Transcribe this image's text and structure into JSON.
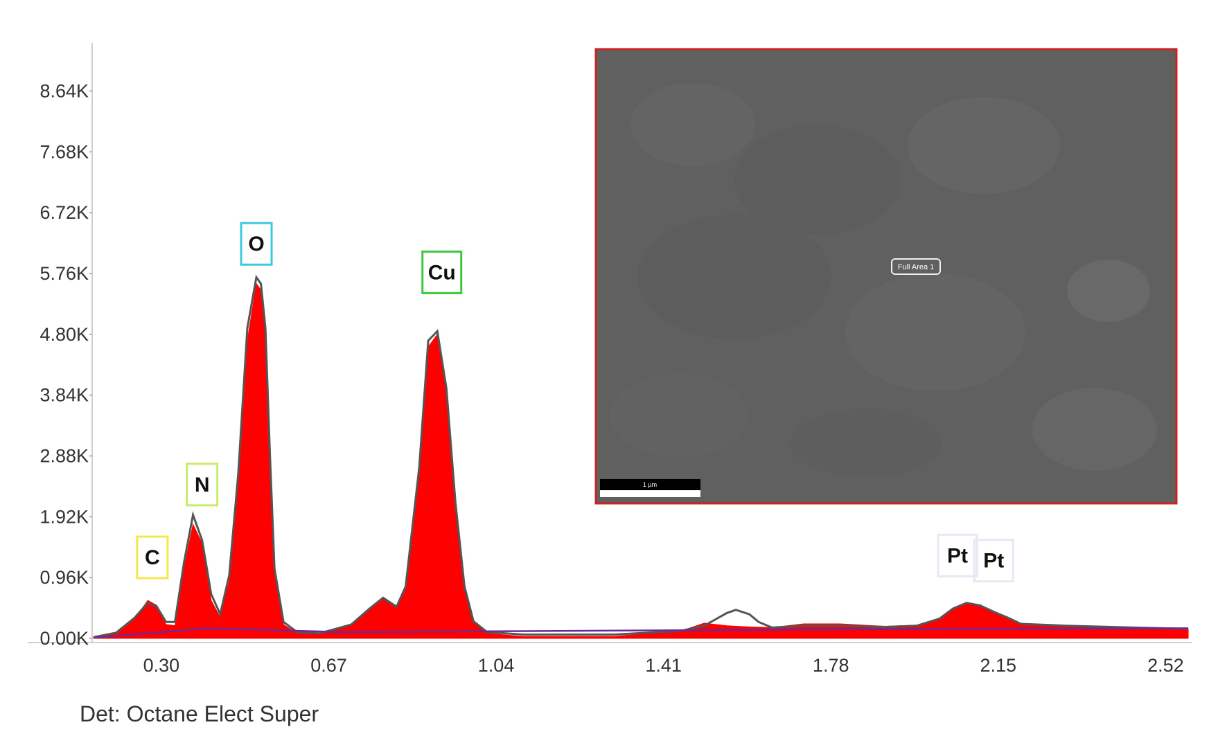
{
  "chart_data": {
    "type": "area",
    "x_ticks": [
      "0.30",
      "0.67",
      "1.04",
      "1.41",
      "1.78",
      "2.15",
      "2.52"
    ],
    "y_ticks": [
      "0.00K",
      "0.96K",
      "1.92K",
      "2.88K",
      "3.84K",
      "4.80K",
      "5.76K",
      "6.72K",
      "7.68K",
      "8.64K"
    ],
    "xlim": [
      0.15,
      2.57
    ],
    "ylim": [
      0,
      9400
    ],
    "grid": false,
    "series": [
      {
        "kind": "spectrum",
        "color": "#ff0000",
        "x": [
          0.15,
          0.2,
          0.24,
          0.27,
          0.29,
          0.31,
          0.33,
          0.35,
          0.37,
          0.39,
          0.41,
          0.43,
          0.45,
          0.47,
          0.49,
          0.51,
          0.52,
          0.53,
          0.54,
          0.55,
          0.57,
          0.6,
          0.65,
          0.72,
          0.76,
          0.79,
          0.82,
          0.84,
          0.87,
          0.89,
          0.91,
          0.93,
          0.95,
          0.97,
          0.99,
          1.02,
          1.1,
          1.3,
          1.45,
          1.5,
          1.55,
          1.6,
          1.65,
          1.72,
          1.8,
          1.9,
          1.97,
          2.02,
          2.05,
          2.08,
          2.11,
          2.14,
          2.17,
          2.2,
          2.3,
          2.45,
          2.57
        ],
        "y": [
          20,
          80,
          300,
          600,
          520,
          220,
          200,
          1100,
          1800,
          1500,
          600,
          330,
          900,
          2400,
          4700,
          5600,
          5500,
          4800,
          2800,
          1000,
          220,
          80,
          60,
          200,
          450,
          620,
          480,
          800,
          2600,
          4600,
          4800,
          3900,
          2100,
          800,
          250,
          80,
          30,
          30,
          120,
          240,
          200,
          180,
          170,
          230,
          230,
          190,
          210,
          300,
          460,
          560,
          520,
          420,
          330,
          230,
          200,
          170,
          150
        ]
      },
      {
        "kind": "fit",
        "color": "#555555",
        "x": [
          0.15,
          0.2,
          0.24,
          0.27,
          0.29,
          0.31,
          0.33,
          0.35,
          0.37,
          0.39,
          0.41,
          0.43,
          0.45,
          0.47,
          0.49,
          0.51,
          0.52,
          0.53,
          0.54,
          0.55,
          0.57,
          0.6,
          0.65,
          0.72,
          0.76,
          0.79,
          0.82,
          0.84,
          0.87,
          0.89,
          0.91,
          0.93,
          0.95,
          0.97,
          0.99,
          1.02,
          1.1,
          1.3,
          1.45,
          1.5,
          1.55,
          1.57,
          1.6,
          1.62,
          1.65,
          1.72,
          1.8,
          1.9,
          1.97,
          2.02,
          2.05,
          2.08,
          2.11,
          2.14,
          2.17,
          2.2,
          2.3,
          2.45,
          2.57
        ],
        "y": [
          20,
          90,
          320,
          560,
          500,
          260,
          260,
          1200,
          1950,
          1550,
          700,
          380,
          1000,
          2600,
          4900,
          5700,
          5600,
          4900,
          2900,
          1100,
          260,
          100,
          80,
          220,
          470,
          640,
          500,
          820,
          2700,
          4700,
          4850,
          3950,
          2150,
          820,
          270,
          100,
          60,
          60,
          120,
          200,
          400,
          450,
          380,
          260,
          170,
          200,
          200,
          180,
          200,
          310,
          470,
          560,
          520,
          420,
          330,
          230,
          200,
          170,
          150
        ]
      },
      {
        "kind": "background",
        "color": "#6a2a9a",
        "x": [
          0.15,
          0.4,
          0.7,
          1.0,
          1.5,
          2.0,
          2.57
        ],
        "y": [
          10,
          160,
          100,
          110,
          130,
          150,
          160
        ]
      }
    ],
    "peak_labels": [
      {
        "text": "C",
        "x": 0.28,
        "y": 950,
        "box_color": "#f2e94a"
      },
      {
        "text": "N",
        "x": 0.39,
        "y": 2100,
        "box_color": "#c8ec6a"
      },
      {
        "text": "O",
        "x": 0.51,
        "y": 5900,
        "box_color": "#3cc8e0"
      },
      {
        "text": "Cu",
        "x": 0.92,
        "y": 5450,
        "box_color": "#3cc83c"
      },
      {
        "text": "Pt",
        "x": 2.06,
        "y": 980,
        "box_color": "#e6e8f4"
      },
      {
        "text": "Pt",
        "x": 2.14,
        "y": 900,
        "box_color": "#e6e8f4"
      }
    ]
  },
  "inset": {
    "area_label": "Full Area 1",
    "scale_bar_label": "1 µm",
    "border_color": "#cc2222",
    "background_color": "#606060"
  },
  "footer": {
    "detector_label": "Det: Octane Elect Super"
  }
}
